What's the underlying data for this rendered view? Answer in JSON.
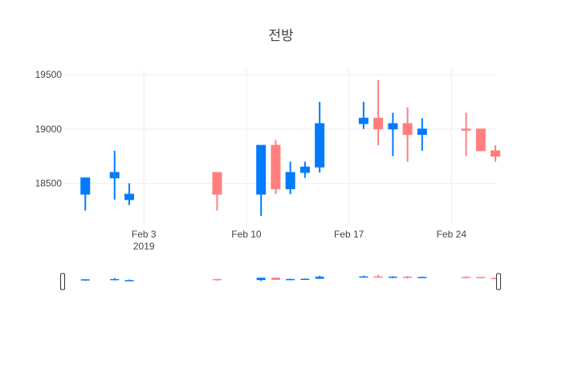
{
  "chart_data": {
    "type": "candlestick",
    "title": "전방",
    "xlabel": "",
    "ylabel": "",
    "ylim": [
      18120,
      19560
    ],
    "y_ticks": [
      18500,
      19000,
      19500
    ],
    "x_range": [
      "2019-01-29",
      "2019-02-27"
    ],
    "x_ticks": [
      {
        "date": "2019-02-03",
        "label": "Feb 3",
        "sublabel": "2019"
      },
      {
        "date": "2019-02-10",
        "label": "Feb 10",
        "sublabel": ""
      },
      {
        "date": "2019-02-17",
        "label": "Feb 17",
        "sublabel": ""
      },
      {
        "date": "2019-02-24",
        "label": "Feb 24",
        "sublabel": ""
      }
    ],
    "grid": true,
    "legend": "none",
    "rangeslider": true,
    "colors": {
      "increasing": "#ff7f7f",
      "decreasing": "#007bff",
      "grid": "#eeeeee",
      "text": "#444444"
    },
    "candles": [
      {
        "date": "2019-01-30",
        "open": 18550,
        "high": 18550,
        "low": 18250,
        "close": 18400
      },
      {
        "date": "2019-02-01",
        "open": 18600,
        "high": 18800,
        "low": 18350,
        "close": 18550
      },
      {
        "date": "2019-02-02",
        "open": 18400,
        "high": 18500,
        "low": 18300,
        "close": 18350
      },
      {
        "date": "2019-02-08",
        "open": 18400,
        "high": 18600,
        "low": 18250,
        "close": 18600
      },
      {
        "date": "2019-02-11",
        "open": 18850,
        "high": 18850,
        "low": 18200,
        "close": 18400
      },
      {
        "date": "2019-02-12",
        "open": 18450,
        "high": 18900,
        "low": 18400,
        "close": 18850
      },
      {
        "date": "2019-02-13",
        "open": 18600,
        "high": 18700,
        "low": 18400,
        "close": 18450
      },
      {
        "date": "2019-02-14",
        "open": 18650,
        "high": 18700,
        "low": 18550,
        "close": 18600
      },
      {
        "date": "2019-02-15",
        "open": 19050,
        "high": 19250,
        "low": 18600,
        "close": 18650
      },
      {
        "date": "2019-02-18",
        "open": 19100,
        "high": 19250,
        "low": 19000,
        "close": 19050
      },
      {
        "date": "2019-02-19",
        "open": 19000,
        "high": 19450,
        "low": 18850,
        "close": 19100
      },
      {
        "date": "2019-02-20",
        "open": 19050,
        "high": 19150,
        "low": 18750,
        "close": 19000
      },
      {
        "date": "2019-02-21",
        "open": 18950,
        "high": 19200,
        "low": 18700,
        "close": 19050
      },
      {
        "date": "2019-02-22",
        "open": 19000,
        "high": 19100,
        "low": 18800,
        "close": 18950
      },
      {
        "date": "2019-02-25",
        "open": 19000,
        "high": 19150,
        "low": 18750,
        "close": 19000
      },
      {
        "date": "2019-02-26",
        "open": 18800,
        "high": 19000,
        "low": 18800,
        "close": 19000
      },
      {
        "date": "2019-02-27",
        "open": 18750,
        "high": 18850,
        "low": 18700,
        "close": 18800
      }
    ]
  }
}
